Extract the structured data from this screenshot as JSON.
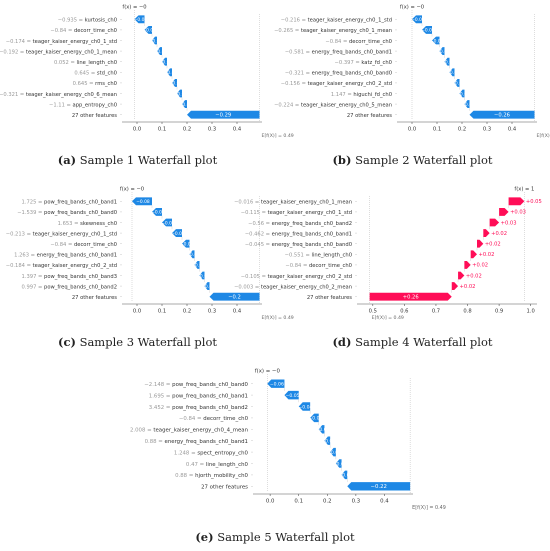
{
  "chart_data": [
    {
      "type": "waterfall",
      "panel_label": "(a)",
      "caption": "Sample 1 Waterfall plot",
      "fx_label": "f(x) = −0",
      "efx_label": "E[f(X)] = 0.49",
      "base_value": 0.49,
      "xlim": [
        -0.06,
        0.5
      ],
      "xticks": [
        0.0,
        0.1,
        0.2,
        0.3,
        0.4
      ],
      "features": [
        {
          "name": "kurtosis_ch0",
          "feature_value": "−0.935",
          "contribution": -0.04
        },
        {
          "name": "decorr_time_ch0",
          "feature_value": "−0.84",
          "contribution": -0.03
        },
        {
          "name": "teager_kaiser_energy_ch0_1_std",
          "feature_value": "−0.174",
          "contribution": -0.02
        },
        {
          "name": "teager_kaiser_energy_ch0_1_mean",
          "feature_value": "−0.192",
          "contribution": -0.02
        },
        {
          "name": "line_length_ch0",
          "feature_value": "0.052",
          "contribution": -0.02
        },
        {
          "name": "std_ch0",
          "feature_value": "0.645",
          "contribution": -0.02
        },
        {
          "name": "rms_ch0",
          "feature_value": "0.645",
          "contribution": -0.02
        },
        {
          "name": "teager_kaiser_energy_ch0_6_mean",
          "feature_value": "−0.321",
          "contribution": -0.02
        },
        {
          "name": "app_entropy_ch0",
          "feature_value": "−1.11",
          "contribution": -0.02
        },
        {
          "name": "27 other features",
          "feature_value": "",
          "contribution": -0.29
        }
      ],
      "bar_labels": [
        "−0.04",
        "−0.03",
        "−0.02",
        "−0.02",
        "−0.02",
        "−0.02",
        "−0.02",
        "−0.02",
        "−0.02",
        "−0.29"
      ]
    },
    {
      "type": "waterfall",
      "panel_label": "(b)",
      "caption": "Sample 2 Waterfall plot",
      "fx_label": "f(x) = −0",
      "efx_label": "E[f(X)] = 0.49",
      "base_value": 0.49,
      "xlim": [
        -0.06,
        0.5
      ],
      "xticks": [
        0.0,
        0.1,
        0.2,
        0.3,
        0.4
      ],
      "features": [
        {
          "name": "teager_kaiser_energy_ch0_1_std",
          "feature_value": "−0.216",
          "contribution": -0.04
        },
        {
          "name": "teager_kaiser_energy_ch0_1_mean",
          "feature_value": "−0.265",
          "contribution": -0.04
        },
        {
          "name": "decorr_time_ch0",
          "feature_value": "−0.84",
          "contribution": -0.03
        },
        {
          "name": "energy_freq_bands_ch0_band1",
          "feature_value": "−0.581",
          "contribution": -0.02
        },
        {
          "name": "katz_fd_ch0",
          "feature_value": "−0.397",
          "contribution": -0.02
        },
        {
          "name": "energy_freq_bands_ch0_band0",
          "feature_value": "−0.321",
          "contribution": -0.02
        },
        {
          "name": "teager_kaiser_energy_ch0_2_std",
          "feature_value": "−0.156",
          "contribution": -0.02
        },
        {
          "name": "higuchi_fd_ch0",
          "feature_value": "1.147",
          "contribution": -0.02
        },
        {
          "name": "teager_kaiser_energy_ch0_5_mean",
          "feature_value": "−0.224",
          "contribution": -0.02
        },
        {
          "name": "27 other features",
          "feature_value": "",
          "contribution": -0.26
        }
      ],
      "bar_labels": [
        "−0.04",
        "−0.04",
        "−0.03",
        "−0.02",
        "−0.02",
        "−0.02",
        "−0.02",
        "−0.02",
        "−0.02",
        "−0.26"
      ]
    },
    {
      "type": "waterfall",
      "panel_label": "(c)",
      "caption": "Sample 3 Waterfall plot",
      "fx_label": "f(x) = −0",
      "efx_label": "E[f(X)] = 0.49",
      "base_value": 0.49,
      "xlim": [
        -0.06,
        0.5
      ],
      "xticks": [
        0.0,
        0.1,
        0.2,
        0.3,
        0.4
      ],
      "features": [
        {
          "name": "pow_freq_bands_ch0_band1",
          "feature_value": "1.725",
          "contribution": -0.08
        },
        {
          "name": "pow_freq_bands_ch0_band0",
          "feature_value": "−1.539",
          "contribution": -0.04
        },
        {
          "name": "skewness_ch0",
          "feature_value": "1.653",
          "contribution": -0.04
        },
        {
          "name": "teager_kaiser_energy_ch0_1_std",
          "feature_value": "−0.213",
          "contribution": -0.04
        },
        {
          "name": "decorr_time_ch0",
          "feature_value": "−0.84",
          "contribution": -0.03
        },
        {
          "name": "energy_freq_bands_ch0_band1",
          "feature_value": "1.263",
          "contribution": -0.02
        },
        {
          "name": "teager_kaiser_energy_ch0_2_std",
          "feature_value": "−0.184",
          "contribution": -0.02
        },
        {
          "name": "pow_freq_bands_ch0_band3",
          "feature_value": "1.397",
          "contribution": -0.02
        },
        {
          "name": "pow_freq_bands_ch0_band2",
          "feature_value": "0.997",
          "contribution": -0.02
        },
        {
          "name": "27 other features",
          "feature_value": "",
          "contribution": -0.2
        }
      ],
      "bar_labels": [
        "−0.08",
        "−0.04",
        "−0.04",
        "−0.04",
        "−0.03",
        "−0.02",
        "−0.02",
        "−0.02",
        "−0.02",
        "−0.2"
      ]
    },
    {
      "type": "waterfall",
      "panel_label": "(d)",
      "caption": "Sample 4 Waterfall plot",
      "fx_label": "f(x) = 1",
      "efx_label": "E[f(X)] = 0.49",
      "base_value": 0.49,
      "xlim": [
        0.45,
        1.02
      ],
      "xticks": [
        0.5,
        0.6,
        0.7,
        0.8,
        0.9,
        1.0
      ],
      "features": [
        {
          "name": "teager_kaiser_energy_ch0_1_mean",
          "feature_value": "−0.016",
          "contribution": 0.05
        },
        {
          "name": "teager_kaiser_energy_ch0_1_std",
          "feature_value": "−0.115",
          "contribution": 0.03
        },
        {
          "name": "energy_freq_bands_ch0_band2",
          "feature_value": "−0.56",
          "contribution": 0.03
        },
        {
          "name": "energy_freq_bands_ch0_band1",
          "feature_value": "−0.462",
          "contribution": 0.02
        },
        {
          "name": "energy_freq_bands_ch0_band0",
          "feature_value": "−0.045",
          "contribution": 0.02
        },
        {
          "name": "line_length_ch0",
          "feature_value": "−0.551",
          "contribution": 0.02
        },
        {
          "name": "decorr_time_ch0",
          "feature_value": "−0.84",
          "contribution": 0.02
        },
        {
          "name": "teager_kaiser_energy_ch0_2_std",
          "feature_value": "−0.105",
          "contribution": 0.02
        },
        {
          "name": "teager_kaiser_energy_ch0_2_mean",
          "feature_value": "−0.003",
          "contribution": 0.02
        },
        {
          "name": "27 other features",
          "feature_value": "",
          "contribution": 0.26
        }
      ],
      "bar_labels": [
        "+0.05",
        "+0.03",
        "+0.03",
        "+0.02",
        "+0.02",
        "+0.02",
        "+0.02",
        "+0.02",
        "+0.02",
        "+0.26"
      ]
    },
    {
      "type": "waterfall",
      "panel_label": "(e)",
      "caption": "Sample 5 Waterfall plot",
      "fx_label": "f(x) = −0",
      "efx_label": "E[f(X)] = 0.49",
      "base_value": 0.49,
      "xlim": [
        -0.06,
        0.5
      ],
      "xticks": [
        0.0,
        0.1,
        0.2,
        0.3,
        0.4
      ],
      "features": [
        {
          "name": "pow_freq_bands_ch0_band0",
          "feature_value": "−2.148",
          "contribution": -0.06
        },
        {
          "name": "pow_freq_bands_ch0_band1",
          "feature_value": "1.695",
          "contribution": -0.05
        },
        {
          "name": "pow_freq_bands_ch0_band2",
          "feature_value": "3.452",
          "contribution": -0.04
        },
        {
          "name": "decorr_time_ch0",
          "feature_value": "−0.84",
          "contribution": -0.03
        },
        {
          "name": "teager_kaiser_energy_ch0_4_mean",
          "feature_value": "2.008",
          "contribution": -0.02
        },
        {
          "name": "energy_freq_bands_ch0_band1",
          "feature_value": "0.88",
          "contribution": -0.02
        },
        {
          "name": "spect_entropy_ch0",
          "feature_value": "1.248",
          "contribution": -0.02
        },
        {
          "name": "line_length_ch0",
          "feature_value": "0.47",
          "contribution": -0.02
        },
        {
          "name": "hjorth_mobility_ch0",
          "feature_value": "0.88",
          "contribution": -0.02
        },
        {
          "name": "27 other features",
          "feature_value": "",
          "contribution": -0.22
        }
      ],
      "bar_labels": [
        "−0.06",
        "−0.05",
        "−0.04",
        "−0.03",
        "−0.02",
        "−0.02",
        "−0.02",
        "−0.02",
        "−0.02",
        "−0.22"
      ]
    }
  ],
  "colors": {
    "negative": "#1e88e5",
    "positive": "#ff0d57",
    "feature_value_text": "#999999",
    "label_text": "#333333",
    "axis": "#555555"
  }
}
